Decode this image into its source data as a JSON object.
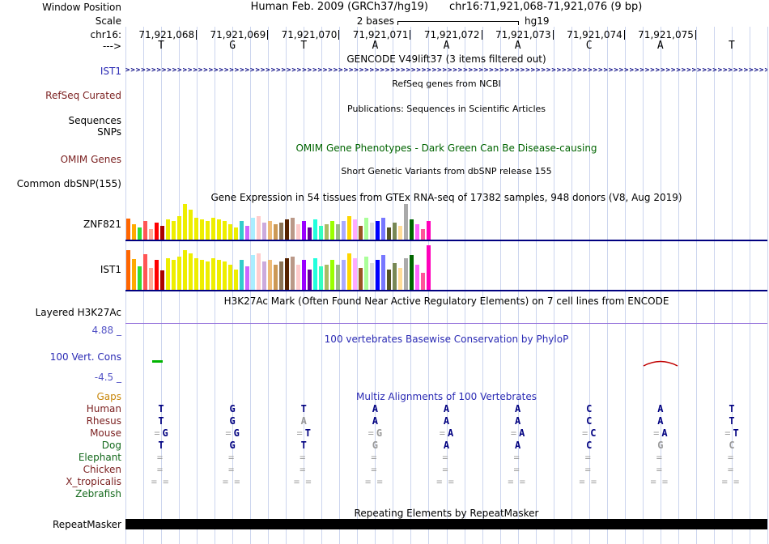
{
  "header": {
    "labels": {
      "window_position": "Window Position",
      "scale": "Scale",
      "chrom": "chr16:",
      "strand": "--->"
    },
    "assembly": "Human Feb. 2009 (GRCh37/hg19)",
    "position": "chr16:71,921,068-71,921,076 (9 bp)",
    "scale_text": "2 bases",
    "assembly_short": "hg19",
    "coordinates": [
      "71,921,068",
      "71,921,069",
      "71,921,070",
      "71,921,071",
      "71,921,072",
      "71,921,073",
      "71,921,074",
      "71,921,075"
    ],
    "bases": [
      "T",
      "G",
      "T",
      "A",
      "A",
      "A",
      "C",
      "A",
      "T"
    ]
  },
  "tracks": {
    "gencode": {
      "left_label": "IST1",
      "title": "GENCODE V49lift37 (3 items filtered out)",
      "arrow_char": ">",
      "arrow_count": 160
    },
    "refseq": {
      "left_label": "RefSeq Curated",
      "title": "RefSeq genes from NCBI"
    },
    "publications": {
      "left_label_1": "Sequences",
      "left_label_2": "SNPs",
      "title": "Publications: Sequences in Scientific Articles"
    },
    "omim": {
      "left_label": "OMIM Genes",
      "title": "OMIM Gene Phenotypes - Dark Green Can Be Disease-causing"
    },
    "dbsnp": {
      "left_label": "Common dbSNP(155)",
      "title": "Short Genetic Variants from dbSNP release 155"
    },
    "gtex": {
      "title": "Gene Expression in 54 tissues from GTEx RNA-seq of 17382 samples, 948 donors (V8, Aug 2019)",
      "track1_label": "ZNF821",
      "track2_label": "IST1"
    },
    "h3k27ac": {
      "left_label": "Layered H3K27Ac",
      "title": "H3K27Ac Mark (Often Found Near Active Regulatory Elements) on 7 cell lines from ENCODE"
    },
    "phylop": {
      "left_label": "100 Vert. Cons",
      "title": "100 vertebrates Basewise Conservation by PhyloP",
      "max_label": "4.88 _",
      "min_label": "-4.5 _"
    },
    "multiz": {
      "title": "Multiz Alignments of 100 Vertebrates",
      "rows": [
        {
          "name": "Gaps",
          "color": "#c8860a",
          "cells": [
            {},
            {},
            {},
            {},
            {},
            {},
            {},
            {},
            {}
          ]
        },
        {
          "name": "Human",
          "color": "#7c2222",
          "cells": [
            {
              "t": "T"
            },
            {
              "t": "G"
            },
            {
              "t": "T"
            },
            {
              "t": "A"
            },
            {
              "t": "A"
            },
            {
              "t": "A"
            },
            {
              "t": "C"
            },
            {
              "t": "A"
            },
            {
              "t": "T"
            }
          ]
        },
        {
          "name": "Rhesus",
          "color": "#7c2222",
          "cells": [
            {
              "t": "T"
            },
            {
              "t": "G"
            },
            {
              "t": "A",
              "m": true
            },
            {
              "t": "A"
            },
            {
              "t": "A"
            },
            {
              "t": "A"
            },
            {
              "t": "C"
            },
            {
              "t": "A"
            },
            {
              "t": "T"
            }
          ]
        },
        {
          "name": "Mouse",
          "color": "#7c2222",
          "cells": [
            {
              "pre": "=",
              "t": "G"
            },
            {
              "pre": "=",
              "t": "G"
            },
            {
              "pre": "=",
              "t": "T"
            },
            {
              "pre": "=",
              "t": "G",
              "m": true
            },
            {
              "pre": "=",
              "t": "A"
            },
            {
              "pre": "=",
              "t": "A"
            },
            {
              "pre": "=",
              "t": "C"
            },
            {
              "pre": "=",
              "t": "A"
            },
            {
              "pre": "=",
              "t": "T"
            }
          ]
        },
        {
          "name": "Dog",
          "color": "#14691c",
          "cells": [
            {
              "t": "T"
            },
            {
              "t": "G"
            },
            {
              "t": "T"
            },
            {
              "t": "G",
              "m": true
            },
            {
              "t": "A"
            },
            {
              "t": "A"
            },
            {
              "t": "C"
            },
            {
              "t": "G",
              "m": true
            },
            {
              "t": "C",
              "m": true
            }
          ]
        },
        {
          "name": "Elephant",
          "color": "#14691c",
          "cells": [
            {
              "pre": "="
            },
            {
              "pre": "="
            },
            {
              "pre": "="
            },
            {
              "pre": "="
            },
            {
              "pre": "="
            },
            {
              "pre": "="
            },
            {
              "pre": "="
            },
            {
              "pre": "="
            },
            {
              "pre": "="
            }
          ]
        },
        {
          "name": "Chicken",
          "color": "#7c2222",
          "cells": [
            {
              "pre": "="
            },
            {
              "pre": "="
            },
            {
              "pre": "="
            },
            {
              "pre": "="
            },
            {
              "pre": "="
            },
            {
              "pre": "="
            },
            {
              "pre": "="
            },
            {
              "pre": "="
            },
            {
              "pre": "="
            }
          ]
        },
        {
          "name": "X_tropicalis",
          "color": "#7c2222",
          "cells": [
            {
              "pre": "= ="
            },
            {
              "pre": "= ="
            },
            {
              "pre": "= ="
            },
            {
              "pre": "= ="
            },
            {
              "pre": "= ="
            },
            {
              "pre": "= ="
            },
            {
              "pre": "= ="
            },
            {
              "pre": "= ="
            },
            {
              "pre": "= ="
            }
          ]
        },
        {
          "name": "Zebrafish",
          "color": "#14691c",
          "cells": [
            {},
            {},
            {},
            {},
            {},
            {},
            {},
            {},
            {}
          ]
        }
      ]
    },
    "repeatmasker": {
      "left_label": "RepeatMasker",
      "title": "Repeating Elements by RepeatMasker"
    }
  },
  "chart_data": [
    {
      "type": "bar",
      "name": "ZNF821",
      "title": "Gene Expression in 54 tissues from GTEx RNA-seq of 17382 samples, 948 donors (V8, Aug 2019)",
      "values": [
        26,
        19,
        15,
        23,
        13,
        21,
        17,
        25,
        23,
        29,
        44,
        37,
        27,
        25,
        23,
        27,
        25,
        23,
        19,
        15,
        23,
        17,
        27,
        29,
        21,
        23,
        19,
        21,
        25,
        27,
        19,
        23,
        15,
        25,
        17,
        19,
        23,
        19,
        23,
        29,
        25,
        17,
        27,
        21,
        23,
        27,
        15,
        21,
        17,
        44,
        25,
        19,
        13,
        23
      ],
      "colors": [
        "#FF6600",
        "#FFAA00",
        "#33DD33",
        "#FF5555",
        "#FFAA99",
        "#FF0000",
        "#AA0000",
        "#EEEE00",
        "#EEEE00",
        "#EEEE00",
        "#EEEE00",
        "#EEEE00",
        "#EEEE00",
        "#EEEE00",
        "#EEEE00",
        "#EEEE00",
        "#EEEE00",
        "#EEEE00",
        "#EEEE00",
        "#EEEE00",
        "#33CCCC",
        "#CC66FF",
        "#AAEEFF",
        "#FFCCCC",
        "#CCAADD",
        "#EEBB77",
        "#CC9955",
        "#8B7355",
        "#552200",
        "#BB9988",
        "#FFCCCC",
        "#9900FF",
        "#660099",
        "#22FFDD",
        "#33FFC2",
        "#AABB66",
        "#99FF00",
        "#99BB88",
        "#AAAAFF",
        "#FFD700",
        "#FFAAFF",
        "#995522",
        "#AAFF99",
        "#DDDDDD",
        "#0000FF",
        "#7777FF",
        "#555522",
        "#778855",
        "#FFDD99",
        "#AAAAAA",
        "#006600",
        "#FF66FF",
        "#FF5599",
        "#FF00BB"
      ]
    },
    {
      "type": "bar",
      "name": "IST1",
      "values": [
        49,
        38,
        29,
        44,
        27,
        37,
        24,
        39,
        37,
        41,
        49,
        45,
        39,
        37,
        35,
        39,
        37,
        35,
        31,
        25,
        37,
        29,
        43,
        45,
        35,
        37,
        31,
        35,
        39,
        41,
        31,
        37,
        25,
        39,
        29,
        31,
        37,
        31,
        37,
        45,
        39,
        27,
        41,
        33,
        37,
        43,
        25,
        33,
        27,
        39,
        43,
        31,
        21,
        55
      ],
      "colors": [
        "#FF6600",
        "#FFAA00",
        "#33DD33",
        "#FF5555",
        "#FFAA99",
        "#FF0000",
        "#AA0000",
        "#EEEE00",
        "#EEEE00",
        "#EEEE00",
        "#EEEE00",
        "#EEEE00",
        "#EEEE00",
        "#EEEE00",
        "#EEEE00",
        "#EEEE00",
        "#EEEE00",
        "#EEEE00",
        "#EEEE00",
        "#EEEE00",
        "#33CCCC",
        "#CC66FF",
        "#AAEEFF",
        "#FFCCCC",
        "#CCAADD",
        "#EEBB77",
        "#CC9955",
        "#8B7355",
        "#552200",
        "#BB9988",
        "#FFCCCC",
        "#9900FF",
        "#660099",
        "#22FFDD",
        "#33FFC2",
        "#AABB66",
        "#99FF00",
        "#99BB88",
        "#AAAAFF",
        "#FFD700",
        "#FFAAFF",
        "#995522",
        "#AAFF99",
        "#DDDDDD",
        "#0000FF",
        "#7777FF",
        "#555522",
        "#778855",
        "#FFDD99",
        "#AAAAAA",
        "#006600",
        "#FF66FF",
        "#FF5599",
        "#FF00BB"
      ]
    }
  ],
  "colors": {
    "navy": "#000080",
    "title_blue": "#2a2ab4",
    "maroon_label": "#7c2222",
    "green_label": "#14691c",
    "omim_green": "#006400",
    "gaps_orange": "#c8860a",
    "gridline": "#ccd5ee",
    "h3k27ac_purple": "#9370DB",
    "phylop_green": "#00b400",
    "phylop_red": "#c00000"
  }
}
